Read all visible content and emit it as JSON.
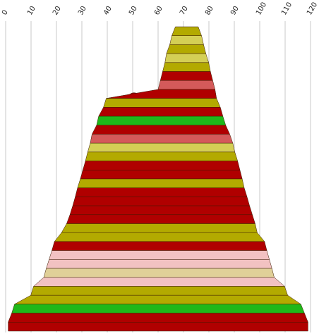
{
  "chart_data": {
    "type": "area",
    "title": "",
    "xlabel": "",
    "ylabel": "",
    "xlim": [
      0,
      120
    ],
    "x_ticks": [
      0,
      10,
      20,
      30,
      40,
      50,
      60,
      70,
      80,
      90,
      100,
      110,
      120
    ],
    "x_tick_labels": [
      "0",
      "10",
      "20",
      "30",
      "40",
      "50",
      "60",
      "70",
      "80",
      "90",
      "100",
      "110",
      "120"
    ],
    "grid": true,
    "legend": "none",
    "colors": {
      "red": "#b00000",
      "olive": "#b3aa00",
      "khaki": "#d4cf55",
      "salmon": "#d45a5a",
      "green": "#1fb81a",
      "pink": "#f2c2c2",
      "tan": "#e0d098",
      "grid": "#c8c8c8"
    },
    "bands": [
      {
        "left": 66.8,
        "right": 75.8,
        "color": "olive"
      },
      {
        "left": 65.4,
        "right": 77.1,
        "color": "khaki"
      },
      {
        "left": 64.6,
        "right": 77.9,
        "color": "olive"
      },
      {
        "left": 63.3,
        "right": 78.8,
        "color": "khaki"
      },
      {
        "left": 62.7,
        "right": 79.9,
        "color": "olive"
      },
      {
        "left": 61.8,
        "right": 80.6,
        "color": "red"
      },
      {
        "left": 60.9,
        "right": 81.5,
        "color": "salmon"
      },
      {
        "left": 60.0,
        "right": 82.4,
        "color": "red"
      },
      {
        "left": 39.6,
        "right": 83.0,
        "color": "olive"
      },
      {
        "left": 38.5,
        "right": 84.5,
        "color": "red"
      },
      {
        "left": 36.6,
        "right": 85.5,
        "color": "green"
      },
      {
        "left": 35.8,
        "right": 86.6,
        "color": "red"
      },
      {
        "left": 34.0,
        "right": 88.2,
        "color": "salmon"
      },
      {
        "left": 33.3,
        "right": 89.4,
        "color": "khaki"
      },
      {
        "left": 32.3,
        "right": 90.2,
        "color": "olive"
      },
      {
        "left": 31.4,
        "right": 91.3,
        "color": "red"
      },
      {
        "left": 30.4,
        "right": 92.2,
        "color": "red"
      },
      {
        "left": 29.4,
        "right": 93.1,
        "color": "olive"
      },
      {
        "left": 28.3,
        "right": 93.9,
        "color": "red"
      },
      {
        "left": 27.4,
        "right": 95.0,
        "color": "red"
      },
      {
        "left": 26.4,
        "right": 96.0,
        "color": "red"
      },
      {
        "left": 25.3,
        "right": 97.1,
        "color": "red"
      },
      {
        "left": 24.0,
        "right": 98.2,
        "color": "olive"
      },
      {
        "left": 22.0,
        "right": 99.0,
        "color": "olive"
      },
      {
        "left": 19.2,
        "right": 101.9,
        "color": "red"
      },
      {
        "left": 18.2,
        "right": 102.8,
        "color": "pink"
      },
      {
        "left": 17.1,
        "right": 103.8,
        "color": "pink"
      },
      {
        "left": 16.0,
        "right": 104.8,
        "color": "tan"
      },
      {
        "left": 15.0,
        "right": 105.7,
        "color": "pink"
      },
      {
        "left": 11.0,
        "right": 109.8,
        "color": "olive"
      },
      {
        "left": 9.9,
        "right": 111.0,
        "color": "olive"
      },
      {
        "left": 3.5,
        "right": 116.2,
        "color": "green"
      },
      {
        "left": 2.4,
        "right": 117.6,
        "color": "red"
      },
      {
        "left": 1.0,
        "right": 119.0,
        "color": "red"
      }
    ],
    "peak": {
      "left": 47.0,
      "center": 50.5,
      "right": 55.0,
      "color": "red"
    }
  }
}
